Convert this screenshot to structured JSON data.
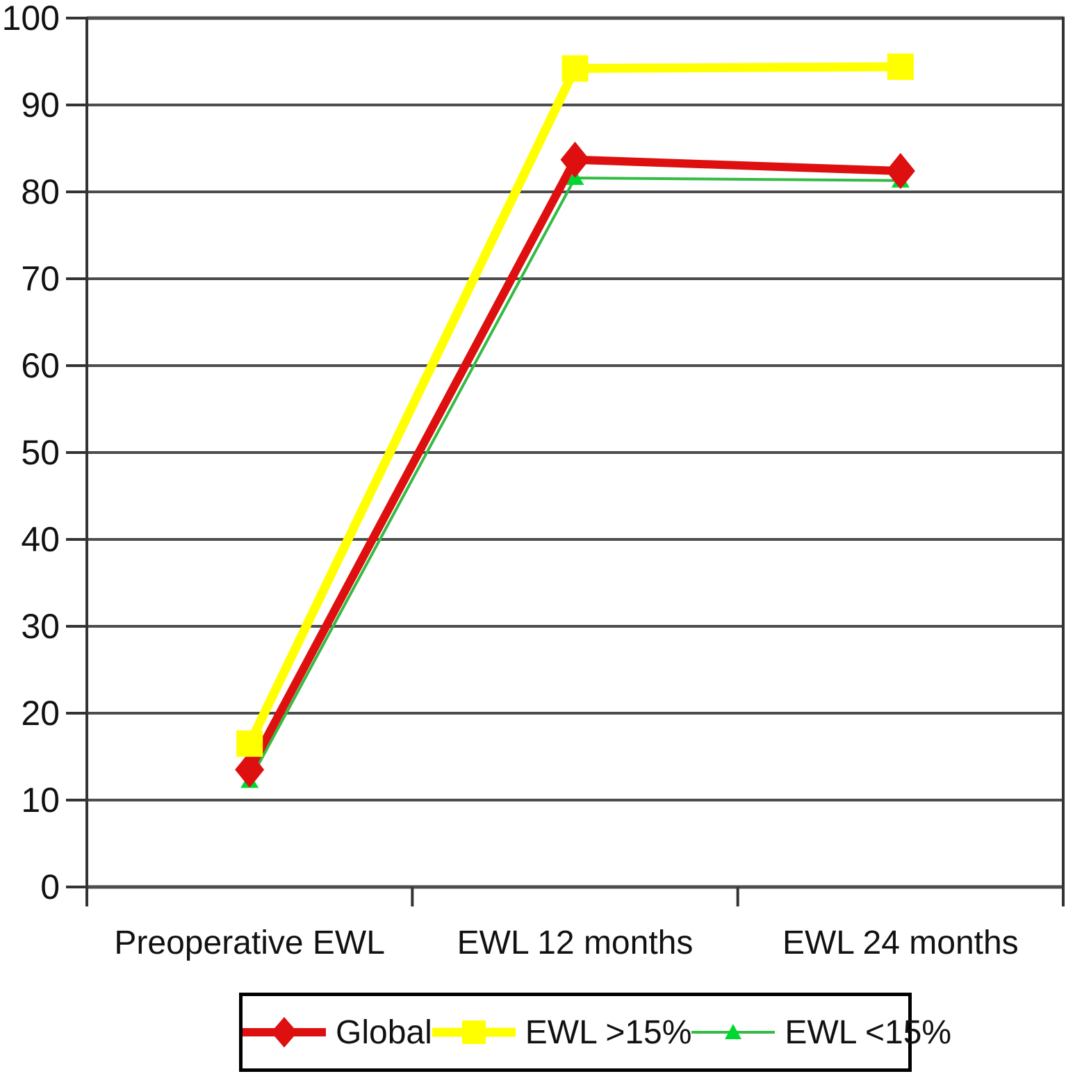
{
  "chart_data": {
    "type": "line",
    "categories": [
      "Preoperative EWL",
      "EWL 12 months",
      "EWL 24 months"
    ],
    "series": [
      {
        "name": "Global",
        "line_color": "#dd0f0f",
        "marker_color": "#dd0f0f",
        "marker": "diamond",
        "line_width": 12,
        "values": [
          13.5,
          83.7,
          82.4
        ]
      },
      {
        "name": "EWL >15%",
        "line_color": "#ffff00",
        "marker_color": "#ffff00",
        "marker": "square",
        "line_width": 13,
        "values": [
          16.5,
          94.2,
          94.4
        ]
      },
      {
        "name": "EWL <15%",
        "line_color": "#33bb44",
        "marker_color": "#00d832",
        "marker": "triangle",
        "line_width": 4,
        "values": [
          12.2,
          81.6,
          81.3
        ]
      }
    ],
    "draw_order": [
      2,
      0,
      1
    ],
    "yticks": [
      "0",
      "10",
      "20",
      "30",
      "40",
      "50",
      "60",
      "70",
      "80",
      "90",
      "100"
    ],
    "ylim": [
      0,
      100
    ],
    "grid": true,
    "gridline_color": "#4d4d4d",
    "axis_color": "#333333",
    "legend_position": "bottom"
  }
}
